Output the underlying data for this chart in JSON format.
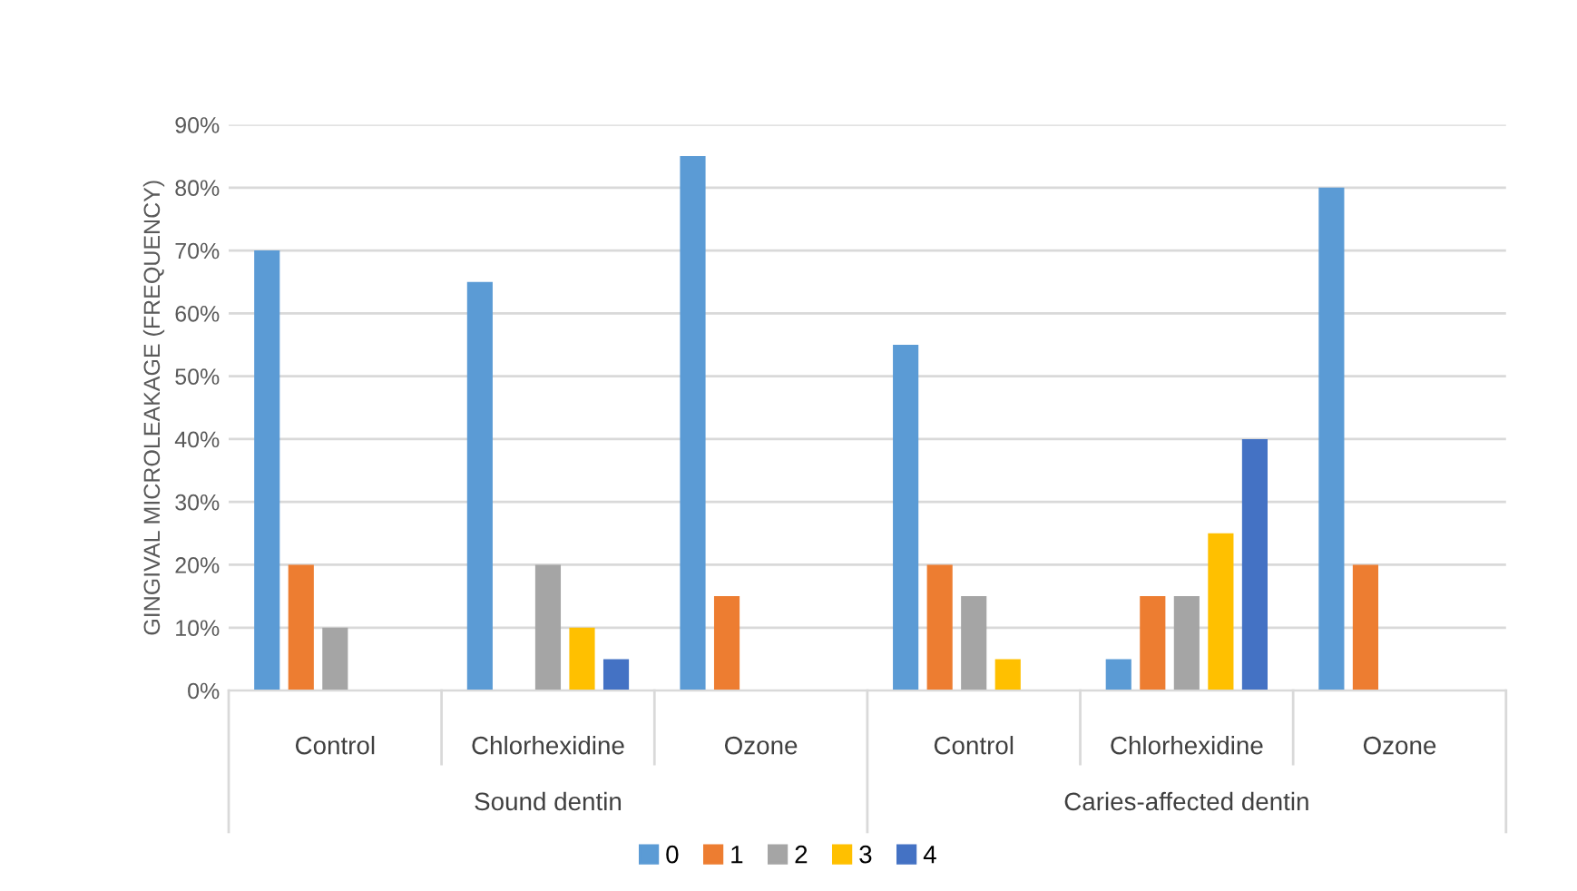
{
  "chart_data": {
    "type": "bar",
    "ylabel": "GINGIVAL MICROLEAKAGE (FREQUENCY)",
    "categories": [
      "Control",
      "Chlorhexidine",
      "Ozone",
      "Control",
      "Chlorhexidine",
      "Ozone"
    ],
    "annotations": [
      "Sound dentin",
      "Caries-affected dentin"
    ],
    "series": [
      {
        "name": "0",
        "color": "#5b9bd5",
        "values": [
          70,
          65,
          85,
          55,
          5,
          80
        ]
      },
      {
        "name": "1",
        "color": "#ed7d31",
        "values": [
          20,
          0,
          15,
          20,
          15,
          20
        ]
      },
      {
        "name": "2",
        "color": "#a5a5a5",
        "values": [
          10,
          20,
          0,
          15,
          15,
          0
        ]
      },
      {
        "name": "3",
        "color": "#ffc000",
        "values": [
          0,
          10,
          0,
          5,
          25,
          0
        ]
      },
      {
        "name": "4",
        "color": "#4472c4",
        "values": [
          0,
          5,
          0,
          0,
          40,
          0
        ]
      }
    ],
    "ylim": [
      0,
      90
    ],
    "yticks": [
      {
        "value": 0,
        "label": "0%"
      },
      {
        "value": 10,
        "label": "10%"
      },
      {
        "value": 20,
        "label": "20%"
      },
      {
        "value": 30,
        "label": "30%"
      },
      {
        "value": 40,
        "label": "40%"
      },
      {
        "value": 50,
        "label": "50%"
      },
      {
        "value": 60,
        "label": "60%"
      },
      {
        "value": 70,
        "label": "70%"
      },
      {
        "value": 80,
        "label": "80%"
      },
      {
        "value": 90,
        "label": "90%"
      }
    ],
    "grid": "y",
    "legend": "bottom"
  }
}
